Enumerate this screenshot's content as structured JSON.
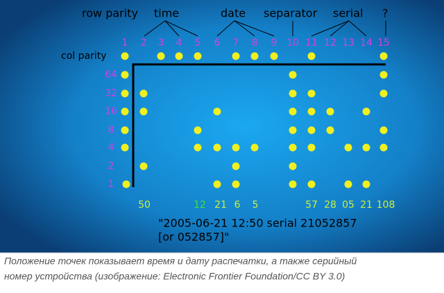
{
  "header_labels": [
    "row parity",
    "time",
    "date",
    "separator",
    "serial",
    "?"
  ],
  "column_numbers": [
    "1",
    "2",
    "3",
    "4",
    "5",
    "6",
    "7",
    "8",
    "9",
    "10",
    "11",
    "12",
    "13",
    "14",
    "15"
  ],
  "col_parity_label": "col parity",
  "row_labels": [
    "64",
    "32",
    "16",
    "8",
    "4",
    "2",
    "1"
  ],
  "bottom_values": [
    "50",
    "12",
    "21",
    "6",
    "5",
    "57",
    "28",
    "05",
    "21",
    "108"
  ],
  "decoded_text": [
    "\"2005-06-21 12:50 serial 21052857",
    "[or 052857]\""
  ],
  "caption": [
    "Положение точек показывает время и дату распечатки, а также серийный",
    "номер устройства (изображение: Electronic Frontier Foundation/CC BY 3.0)"
  ]
}
